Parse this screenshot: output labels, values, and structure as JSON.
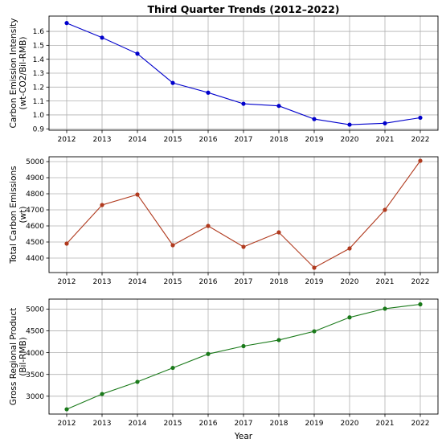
{
  "chart_data": [
    {
      "type": "line",
      "title": "Third Quarter Trends (2012–2022)",
      "ylabel": [
        "Carbon Emission Intensity",
        "(wt-CO2/Bil-RMB)"
      ],
      "xlabel": "",
      "x": [
        2012,
        2013,
        2014,
        2015,
        2016,
        2017,
        2018,
        2019,
        2020,
        2021,
        2022
      ],
      "series": [
        {
          "values": [
            1.66,
            1.555,
            1.44,
            1.23,
            1.16,
            1.08,
            1.065,
            0.97,
            0.93,
            0.94,
            0.98
          ],
          "color": "#0000cc"
        }
      ],
      "ylim": [
        0.89,
        1.71
      ],
      "yticks": [
        0.9,
        1.0,
        1.1,
        1.2,
        1.3,
        1.4,
        1.5,
        1.6
      ],
      "ytick_labels": [
        "0.9",
        "1.0",
        "1.1",
        "1.2",
        "1.3",
        "1.4",
        "1.5",
        "1.6"
      ],
      "grid": true
    },
    {
      "type": "line",
      "title": "",
      "ylabel": [
        "Total Carbon Emissions",
        "(wt)"
      ],
      "xlabel": "",
      "x": [
        2012,
        2013,
        2014,
        2015,
        2016,
        2017,
        2018,
        2019,
        2020,
        2021,
        2022
      ],
      "series": [
        {
          "values": [
            4490,
            4730,
            4795,
            4480,
            4600,
            4470,
            4560,
            4340,
            4460,
            4700,
            5005
          ],
          "color": "#b03a1e"
        }
      ],
      "ylim": [
        4310,
        5030
      ],
      "yticks": [
        4400,
        4500,
        4600,
        4700,
        4800,
        4900,
        5000
      ],
      "ytick_labels": [
        "4400",
        "4500",
        "4600",
        "4700",
        "4800",
        "4900",
        "5000"
      ],
      "grid": true
    },
    {
      "type": "line",
      "title": "",
      "ylabel": [
        "Gross Regional Product",
        "(Bil-RMB)"
      ],
      "xlabel": "Year",
      "x": [
        2012,
        2013,
        2014,
        2015,
        2016,
        2017,
        2018,
        2019,
        2020,
        2021,
        2022
      ],
      "series": [
        {
          "values": [
            2700,
            3050,
            3330,
            3650,
            3970,
            4150,
            4290,
            4490,
            4810,
            5010,
            5110
          ],
          "color": "#1a7a1a"
        }
      ],
      "ylim": [
        2590,
        5230
      ],
      "yticks": [
        3000,
        3500,
        4000,
        4500,
        5000
      ],
      "ytick_labels": [
        "3000",
        "3500",
        "4000",
        "4500",
        "5000"
      ],
      "grid": true
    }
  ]
}
